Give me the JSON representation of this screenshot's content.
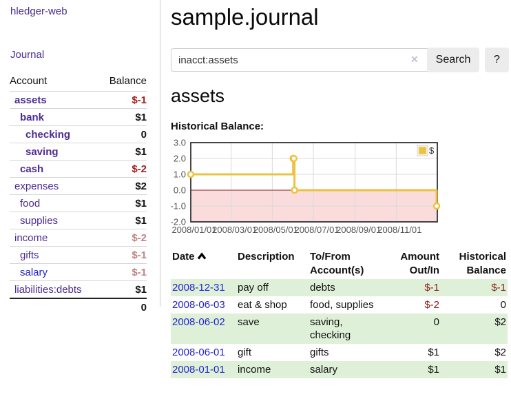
{
  "app": {
    "brand": "hledger-web"
  },
  "sidebar": {
    "journal_link": "Journal",
    "headers": {
      "account": "Account",
      "balance": "Balance"
    },
    "accounts": [
      {
        "name": "assets",
        "balance": "$-1",
        "depth": 1,
        "bold": true,
        "balance_class": "neg"
      },
      {
        "name": "bank",
        "balance": "$1",
        "depth": 2,
        "bold": true,
        "balance_class": "pos"
      },
      {
        "name": "checking",
        "balance": "0",
        "depth": 3,
        "bold": true,
        "balance_class": "pos"
      },
      {
        "name": "saving",
        "balance": "$1",
        "depth": 3,
        "bold": true,
        "balance_class": "pos"
      },
      {
        "name": "cash",
        "balance": "$-2",
        "depth": 2,
        "bold": true,
        "balance_class": "neg"
      },
      {
        "name": "expenses",
        "balance": "$2",
        "depth": 1,
        "bold": false,
        "balance_class": "pos"
      },
      {
        "name": "food",
        "balance": "$1",
        "depth": 2,
        "bold": false,
        "balance_class": "pos"
      },
      {
        "name": "supplies",
        "balance": "$1",
        "depth": 2,
        "bold": false,
        "balance_class": "pos"
      },
      {
        "name": "income",
        "balance": "$-2",
        "depth": 1,
        "bold": false,
        "balance_class": "negmuted"
      },
      {
        "name": "gifts",
        "balance": "$-1",
        "depth": 2,
        "bold": false,
        "balance_class": "negmuted"
      },
      {
        "name": "salary",
        "balance": "$-1",
        "depth": 2,
        "bold": false,
        "balance_class": "negmuted",
        "link_color": "blue"
      },
      {
        "name": "liabilities:debts",
        "balance": "$1",
        "depth": 1,
        "bold": false,
        "balance_class": "pos"
      }
    ],
    "total": "0"
  },
  "main": {
    "title": "sample.journal",
    "account_heading": "assets",
    "chart_label": "Historical Balance:"
  },
  "search": {
    "value": "inacct:assets",
    "clear_icon": "✕",
    "search_label": "Search",
    "help_label": "?"
  },
  "chart_data": {
    "type": "line",
    "title": "Historical Balance",
    "series": [
      {
        "name": "$",
        "color": "#edc240",
        "step": true,
        "points": [
          [
            "2008-01-01",
            1
          ],
          [
            "2008-06-01",
            2
          ],
          [
            "2008-06-02",
            2
          ],
          [
            "2008-06-03",
            0
          ],
          [
            "2008-12-31",
            -1
          ]
        ]
      }
    ],
    "x_range": [
      "2008-01-01",
      "2009-01-01"
    ],
    "x_ticks": [
      "2008/01/01",
      "2008/03/01",
      "2008/05/01",
      "2008/07/01",
      "2008/09/01",
      "2008/11/01"
    ],
    "y_ticks": [
      3.0,
      2.0,
      1.0,
      0.0,
      -1.0,
      -2.0
    ],
    "ylim": [
      -2,
      3
    ],
    "legend": {
      "label": "$",
      "position": "top-right"
    },
    "grid": true,
    "negative_fill": "#fbdcdc",
    "zero_line_color": "#8b2020",
    "border_color": "#454545"
  },
  "register": {
    "headers": {
      "date": "Date",
      "description": "Description",
      "accounts": "To/From Account(s)",
      "amount": "Amount Out/In",
      "balance": "Historical Balance"
    },
    "rows": [
      {
        "date": "2008-12-31",
        "description": "pay off",
        "accounts": "debts",
        "amount": "$-1",
        "balance": "$-1",
        "shaded": true
      },
      {
        "date": "2008-06-03",
        "description": "eat & shop",
        "accounts": "food, supplies",
        "amount": "$-2",
        "balance": "0",
        "shaded": false
      },
      {
        "date": "2008-06-02",
        "description": "save",
        "accounts": "saving,\nchecking",
        "amount": "0",
        "balance": "$2",
        "shaded": true
      },
      {
        "date": "2008-06-01",
        "description": "gift",
        "accounts": "gifts",
        "amount": "$1",
        "balance": "$2",
        "shaded": false
      },
      {
        "date": "2008-01-01",
        "description": "income",
        "accounts": "salary",
        "amount": "$1",
        "balance": "$1",
        "shaded": true
      }
    ]
  }
}
